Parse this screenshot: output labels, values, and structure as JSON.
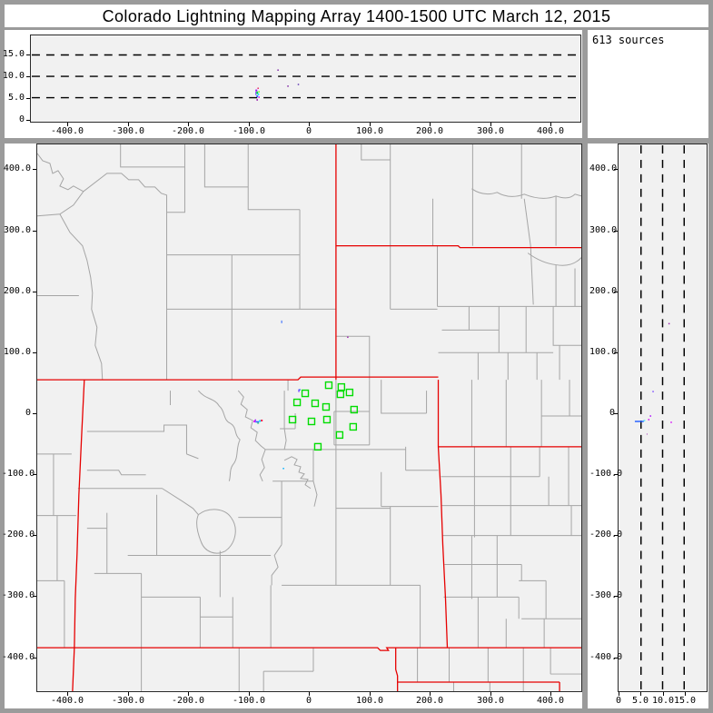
{
  "title": "Colorado Lightning Mapping Array   1400-1500 UTC  March 12, 2015",
  "colors": {
    "frame_gray": "#9b9b9b",
    "panel_white": "#ffffff",
    "plot_background": "#f1f1f1",
    "county_line": "#a5a5a5",
    "state_line": "#e60000",
    "station_green": "#00dd00",
    "gridline_black": "#000000"
  },
  "chart_data": [
    {
      "id": "alt-vs-ew",
      "type": "scatter",
      "description": "altitude (km) vs east-west distance (km) projection",
      "x_ticks": {
        "labels": [
          "-400.0",
          "-300.0",
          "-200.0",
          "-100.0",
          "0",
          "100.0",
          "200.0",
          "300.0",
          "400.0"
        ],
        "values": [
          -400,
          -300,
          -200,
          -100,
          0,
          100,
          200,
          300,
          400
        ]
      },
      "y_ticks": {
        "labels": [
          "0",
          "5.0",
          "10.0",
          "15.0"
        ],
        "values": [
          0,
          5,
          10,
          15
        ]
      },
      "xlim": [
        -462,
        450
      ],
      "ylim": [
        -0.6,
        19.6
      ],
      "grid": "horizontal dashed at 5,10,15 km",
      "gridlines_alt": [
        5,
        10,
        15
      ],
      "points": [
        [
          -87.2,
          6.7,
          "#aa00ff",
          2,
          2
        ],
        [
          -85.7,
          6.15,
          "#00c853",
          2,
          3
        ],
        [
          -83.5,
          5.8,
          "#00e5ff",
          1.5,
          2
        ],
        [
          -85.7,
          5.35,
          "#2962ff",
          2,
          2
        ],
        [
          -82.7,
          5.1,
          "#d500f9",
          1.5,
          1.5
        ],
        [
          -88.0,
          6.0,
          "#7c4dff",
          1,
          4
        ],
        [
          -85.7,
          4.5,
          "#9c27b0",
          1.5,
          2
        ],
        [
          -82.7,
          6.4,
          "#76ff03",
          1,
          2
        ],
        [
          -84.2,
          7.2,
          "#e91e63",
          1.5,
          1.5
        ],
        [
          -51.1,
          11.46,
          "#7b1fa2",
          1.5,
          1.5
        ],
        [
          -34.6,
          7.7,
          "#7b1fa2",
          1.5,
          1.5
        ],
        [
          -17.3,
          8.1,
          "#5e35b1",
          1.5,
          1.5
        ]
      ]
    },
    {
      "id": "lma-map",
      "type": "scatter",
      "description": "plan view map, km east-west vs km north-south, county and state boundaries",
      "x_ticks": {
        "labels": [
          "-400.0",
          "-300.0",
          "-200.0",
          "-100.0",
          "0",
          "100.0",
          "200.0",
          "300.0",
          "400.0"
        ],
        "values": [
          -400,
          -300,
          -200,
          -100,
          0,
          100,
          200,
          300,
          400
        ]
      },
      "y_ticks": {
        "labels": [
          "400.0",
          "300.0",
          "200.0",
          "100.0",
          "0",
          "-100.0",
          "-200.0",
          "-300.0",
          "-400.0"
        ],
        "values": [
          400,
          300,
          200,
          100,
          0,
          -100,
          -200,
          -300,
          -400
        ]
      },
      "xlim": [
        -451,
        453
      ],
      "ylim": [
        -457,
        442
      ],
      "stations": [
        [
          33.1,
          46.2
        ],
        [
          54.1,
          43.2
        ],
        [
          52.6,
          31.3
        ],
        [
          67.7,
          34.3
        ],
        [
          -6.0,
          32.8
        ],
        [
          -19.5,
          17.9
        ],
        [
          10.5,
          16.4
        ],
        [
          28.6,
          10.4
        ],
        [
          75.2,
          6.0
        ],
        [
          -27.1,
          -10.4
        ],
        [
          4.5,
          -13.4
        ],
        [
          30.1,
          -10.4
        ],
        [
          73.7,
          -22.3
        ],
        [
          51.1,
          -35.7
        ],
        [
          15.0,
          -55.1
        ]
      ],
      "sources": [
        [
          -90.2,
          -13.4,
          "#d500f9",
          2,
          2
        ],
        [
          -85.7,
          -14.1,
          "#2962ff",
          4,
          1.5
        ],
        [
          -81.2,
          -12.7,
          "#00e5ff",
          2,
          2
        ],
        [
          -78.2,
          -11.9,
          "#ff1744",
          2,
          2
        ],
        [
          -84.2,
          -16.4,
          "#00c853",
          2,
          1
        ],
        [
          -88.7,
          -11.2,
          "#aa00ff",
          1.5,
          1.5
        ],
        [
          -16.5,
          37.2,
          "#7c4dff",
          1.5,
          3
        ],
        [
          -15.0,
          38.7,
          "#2962ff",
          1.5,
          1.5
        ],
        [
          -45.1,
          150.4,
          "#2962ff",
          1,
          3
        ],
        [
          64.7,
          125.1,
          "#9c27b0",
          1.5,
          1.5
        ],
        [
          -42.1,
          -90.8,
          "#00b0ff",
          1.5,
          1.5
        ]
      ]
    },
    {
      "id": "alt-vs-ns",
      "type": "scatter",
      "description": "altitude (km) vs north-south distance (km) projection",
      "x_ticks": {
        "labels": [
          "0",
          "5.0",
          "10.0",
          "15.0"
        ],
        "values": [
          0,
          5,
          10,
          15
        ]
      },
      "y_ticks": {
        "labels": [
          "400.0",
          "300.0",
          "200.0",
          "100.0",
          "0",
          "-100.0",
          "-200.0",
          "-300.0",
          "-400.0"
        ],
        "values": [
          400,
          300,
          200,
          100,
          0,
          -100,
          -200,
          -300,
          -400
        ]
      },
      "xlim": [
        -0.2,
        20.2
      ],
      "ylim": [
        -457,
        442
      ],
      "grid": "vertical dashed at 5,10,15 km",
      "gridlines_alt": [
        5,
        10,
        15
      ],
      "points": [
        [
          4.6,
          -13.4,
          "#2962ff",
          10,
          1.5
        ],
        [
          5.77,
          -12.0,
          "#00e5ff",
          2,
          1
        ],
        [
          6.8,
          -10.4,
          "#d500f9",
          1.5,
          1.5
        ],
        [
          7.2,
          -4.5,
          "#aa00ff",
          1.5,
          1.5
        ],
        [
          7.8,
          35.7,
          "#7c4dff",
          1.5,
          1.5
        ],
        [
          11.5,
          147.4,
          "#9c27b0",
          1.5,
          1.5
        ],
        [
          12.0,
          -14.9,
          "#d500f9",
          1.5,
          1.5
        ],
        [
          6.4,
          -34.3,
          "#9c27b0",
          1,
          1
        ]
      ]
    },
    {
      "id": "source-count-panel",
      "type": "text",
      "label": "613 sources"
    }
  ]
}
